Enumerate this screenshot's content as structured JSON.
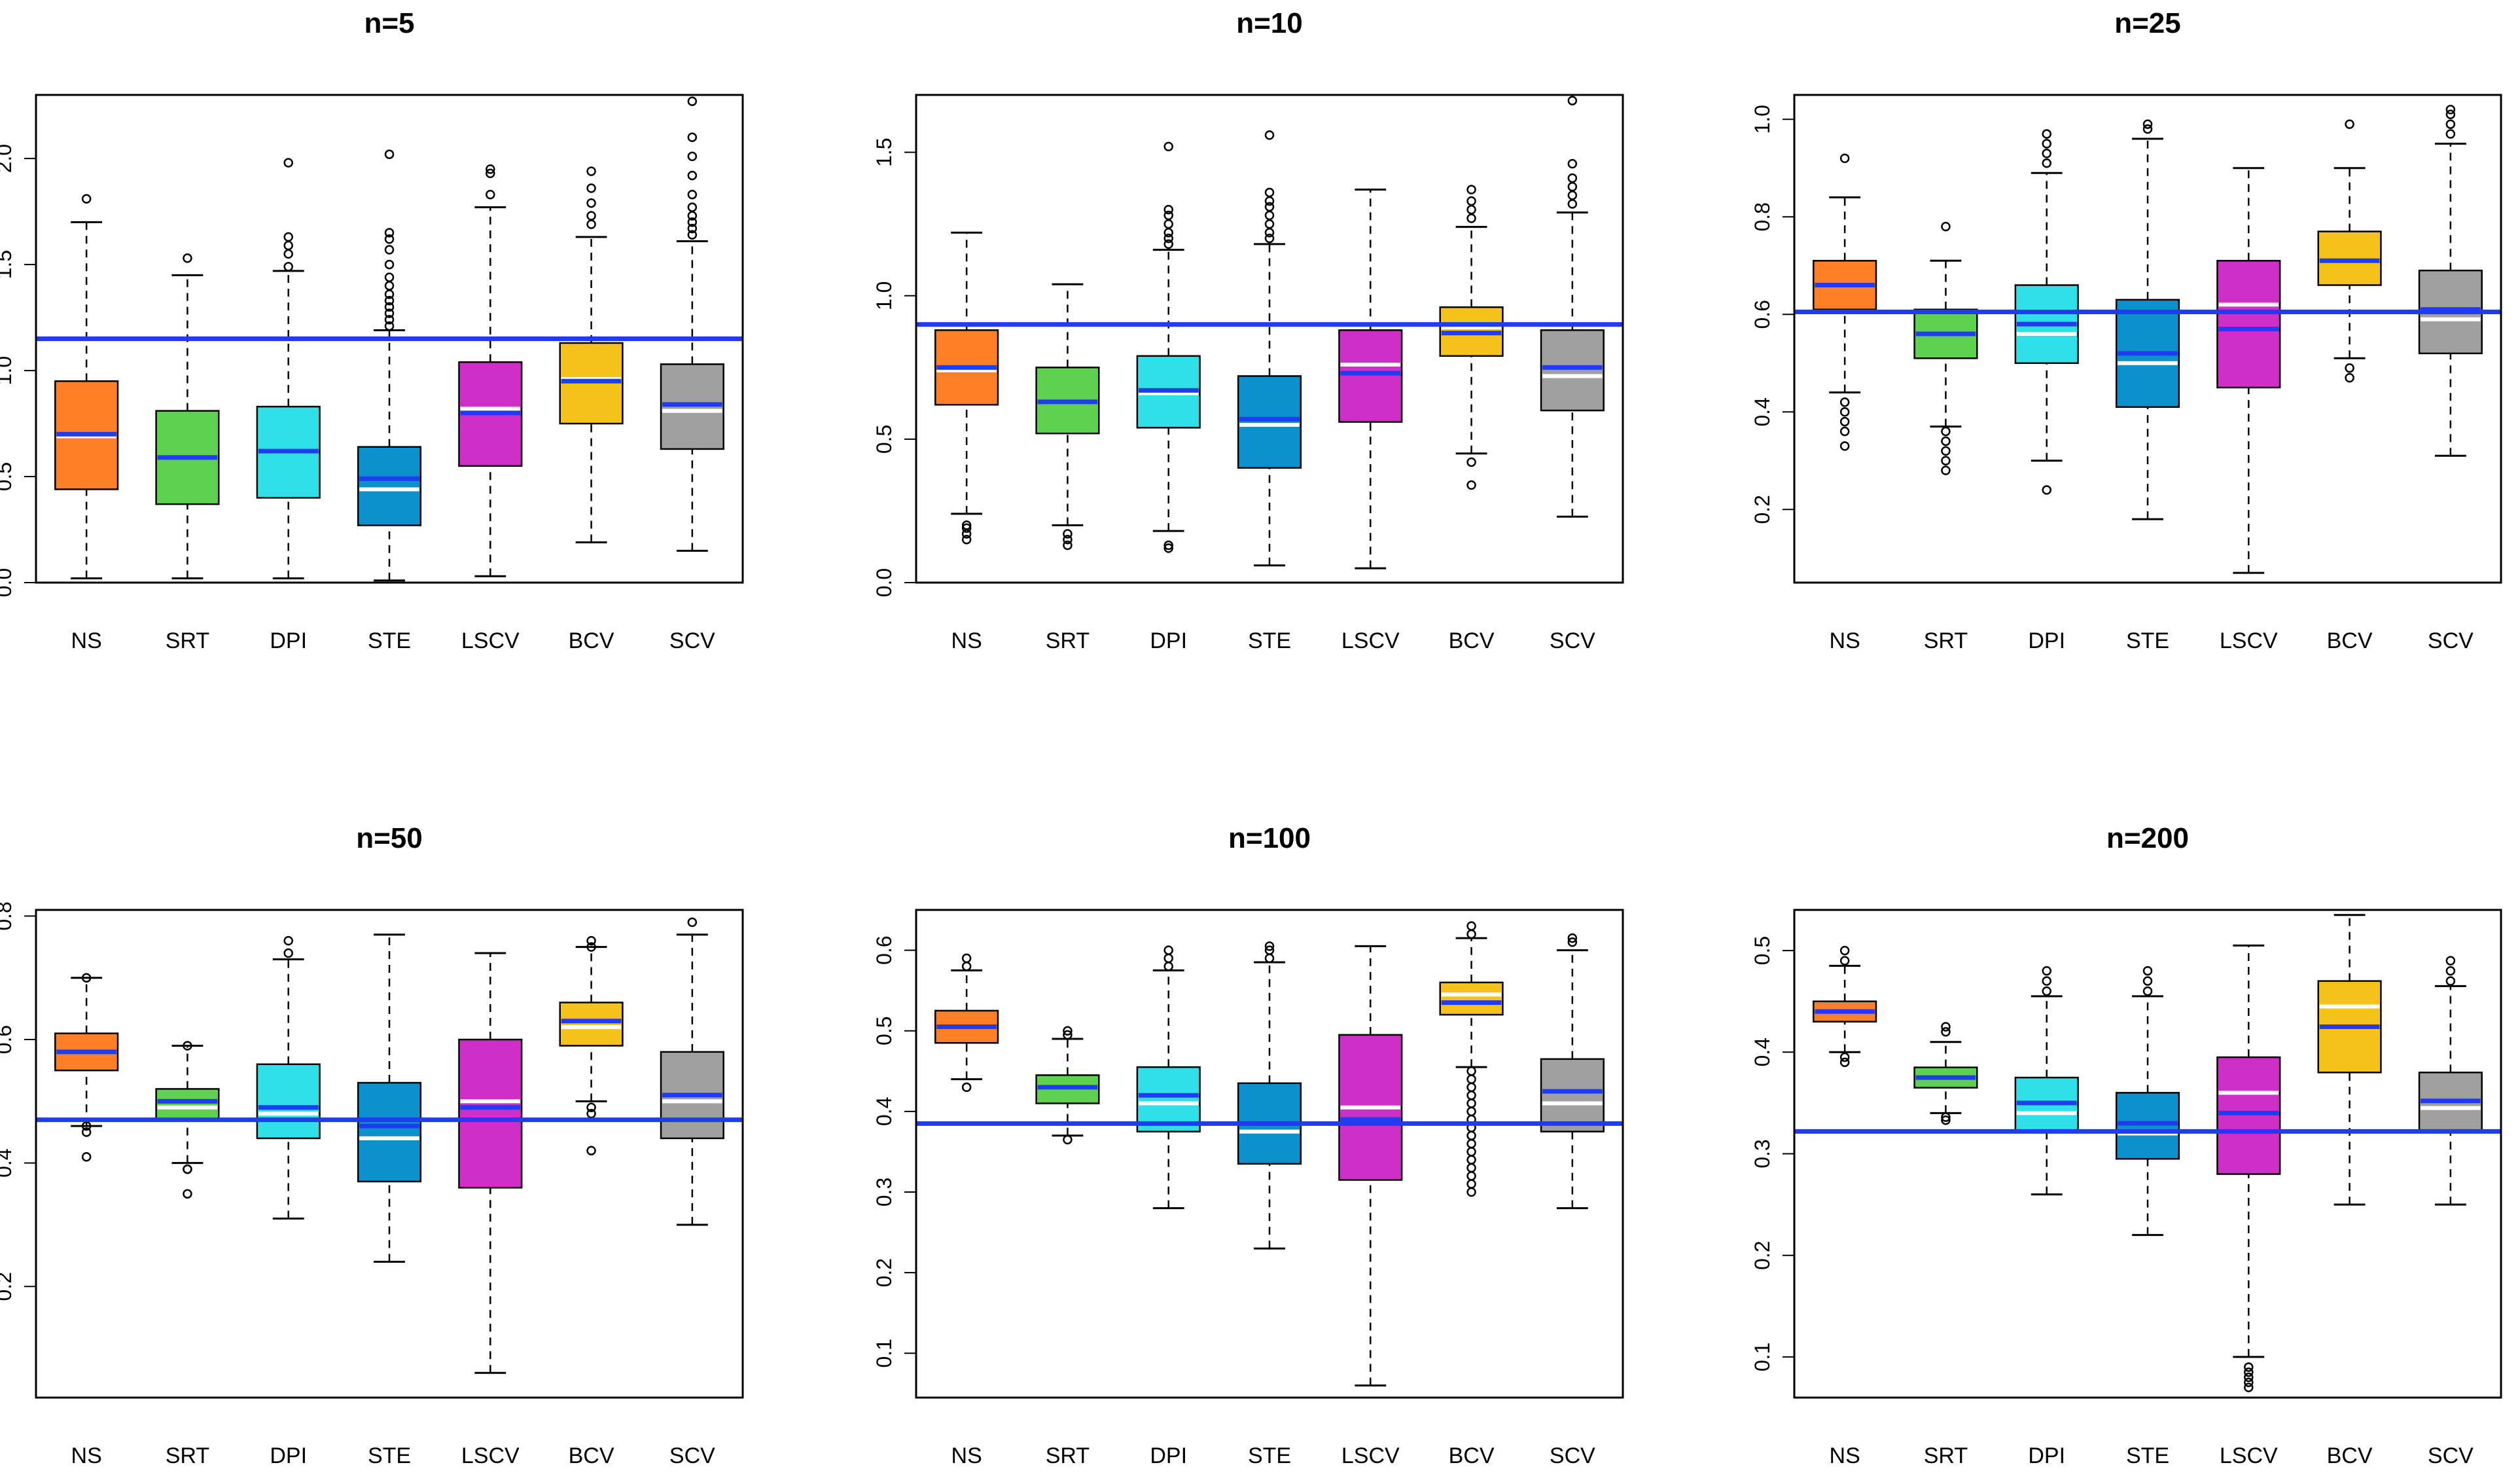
{
  "chart_data": [
    {
      "type": "boxplot",
      "title": "n=5",
      "ylim": [
        0,
        2.3
      ],
      "yticks": [
        "0.0",
        "0.5",
        "1.0",
        "1.5",
        "2.0"
      ],
      "ytick_values": [
        0,
        0.5,
        1.0,
        1.5,
        2.0
      ],
      "reference_line": 1.15,
      "categories": [
        "NS",
        "SRT",
        "DPI",
        "STE",
        "LSCV",
        "BCV",
        "SCV"
      ],
      "boxes": [
        {
          "wlo": 0.02,
          "q1": 0.44,
          "median": 0.69,
          "mean": 0.7,
          "q3": 0.95,
          "whi": 1.7,
          "outliers": [
            1.81
          ]
        },
        {
          "wlo": 0.02,
          "q1": 0.37,
          "median": 0.59,
          "mean": 0.59,
          "q3": 0.81,
          "whi": 1.45,
          "outliers": [
            1.53
          ]
        },
        {
          "wlo": 0.02,
          "q1": 0.4,
          "median": 0.62,
          "mean": 0.62,
          "q3": 0.83,
          "whi": 1.47,
          "outliers": [
            1.49,
            1.55,
            1.59,
            1.63,
            1.98
          ]
        },
        {
          "wlo": 0.01,
          "q1": 0.27,
          "median": 0.44,
          "mean": 0.49,
          "q3": 0.64,
          "whi": 1.19,
          "outliers": [
            1.21,
            1.24,
            1.27,
            1.3,
            1.33,
            1.36,
            1.4,
            1.44,
            1.5,
            1.57,
            1.62,
            1.65,
            2.02
          ]
        },
        {
          "wlo": 0.03,
          "q1": 0.55,
          "median": 0.82,
          "mean": 0.8,
          "q3": 1.04,
          "whi": 1.77,
          "outliers": [
            1.83,
            1.93,
            1.95
          ]
        },
        {
          "wlo": 0.19,
          "q1": 0.75,
          "median": 0.96,
          "mean": 0.95,
          "q3": 1.13,
          "whi": 1.63,
          "outliers": [
            1.69,
            1.73,
            1.79,
            1.86,
            1.94
          ]
        },
        {
          "wlo": 0.15,
          "q1": 0.63,
          "median": 0.81,
          "mean": 0.84,
          "q3": 1.03,
          "whi": 1.61,
          "outliers": [
            1.64,
            1.67,
            1.7,
            1.73,
            1.77,
            1.83,
            1.92,
            2.01,
            2.1,
            2.27
          ]
        }
      ]
    },
    {
      "type": "boxplot",
      "title": "n=10",
      "ylim": [
        0,
        1.7
      ],
      "yticks": [
        "0.0",
        "0.5",
        "1.0",
        "1.5"
      ],
      "ytick_values": [
        0,
        0.5,
        1.0,
        1.5
      ],
      "reference_line": 0.9,
      "categories": [
        "NS",
        "SRT",
        "DPI",
        "STE",
        "LSCV",
        "BCV",
        "SCV"
      ],
      "boxes": [
        {
          "wlo": 0.24,
          "q1": 0.62,
          "median": 0.74,
          "mean": 0.75,
          "q3": 0.88,
          "whi": 1.22,
          "outliers": [
            0.15,
            0.17,
            0.19,
            0.2
          ]
        },
        {
          "wlo": 0.2,
          "q1": 0.52,
          "median": 0.63,
          "mean": 0.63,
          "q3": 0.75,
          "whi": 1.04,
          "outliers": [
            0.13,
            0.15,
            0.17
          ]
        },
        {
          "wlo": 0.18,
          "q1": 0.54,
          "median": 0.66,
          "mean": 0.67,
          "q3": 0.79,
          "whi": 1.16,
          "outliers": [
            0.12,
            0.13,
            1.18,
            1.2,
            1.22,
            1.25,
            1.28,
            1.3,
            1.52
          ]
        },
        {
          "wlo": 0.06,
          "q1": 0.4,
          "median": 0.55,
          "mean": 0.57,
          "q3": 0.72,
          "whi": 1.18,
          "outliers": [
            1.2,
            1.22,
            1.25,
            1.28,
            1.31,
            1.33,
            1.36,
            1.56
          ]
        },
        {
          "wlo": 0.05,
          "q1": 0.56,
          "median": 0.76,
          "mean": 0.73,
          "q3": 0.88,
          "whi": 1.37,
          "outliers": []
        },
        {
          "wlo": 0.45,
          "q1": 0.79,
          "median": 0.89,
          "mean": 0.87,
          "q3": 0.96,
          "whi": 1.24,
          "outliers": [
            0.34,
            0.42,
            1.27,
            1.3,
            1.33,
            1.37
          ]
        },
        {
          "wlo": 0.23,
          "q1": 0.6,
          "median": 0.72,
          "mean": 0.75,
          "q3": 0.88,
          "whi": 1.29,
          "outliers": [
            1.32,
            1.35,
            1.38,
            1.41,
            1.46,
            1.68
          ]
        }
      ]
    },
    {
      "type": "boxplot",
      "title": "n=25",
      "ylim": [
        0.05,
        1.05
      ],
      "yticks": [
        "0.2",
        "0.4",
        "0.6",
        "0.8",
        "1.0"
      ],
      "ytick_values": [
        0.2,
        0.4,
        0.6,
        0.8,
        1.0
      ],
      "reference_line": 0.605,
      "categories": [
        "NS",
        "SRT",
        "DPI",
        "STE",
        "LSCV",
        "BCV",
        "SCV"
      ],
      "boxes": [
        {
          "wlo": 0.44,
          "q1": 0.61,
          "median": 0.66,
          "mean": 0.66,
          "q3": 0.71,
          "whi": 0.84,
          "outliers": [
            0.33,
            0.36,
            0.38,
            0.4,
            0.42,
            0.92
          ]
        },
        {
          "wlo": 0.37,
          "q1": 0.51,
          "median": 0.56,
          "mean": 0.56,
          "q3": 0.61,
          "whi": 0.71,
          "outliers": [
            0.28,
            0.3,
            0.32,
            0.34,
            0.36,
            0.78
          ]
        },
        {
          "wlo": 0.3,
          "q1": 0.5,
          "median": 0.56,
          "mean": 0.58,
          "q3": 0.66,
          "whi": 0.89,
          "outliers": [
            0.24,
            0.91,
            0.93,
            0.95,
            0.97
          ]
        },
        {
          "wlo": 0.18,
          "q1": 0.41,
          "median": 0.5,
          "mean": 0.52,
          "q3": 0.63,
          "whi": 0.96,
          "outliers": [
            0.98,
            0.99
          ]
        },
        {
          "wlo": 0.07,
          "q1": 0.45,
          "median": 0.62,
          "mean": 0.57,
          "q3": 0.71,
          "whi": 0.9,
          "outliers": []
        },
        {
          "wlo": 0.51,
          "q1": 0.66,
          "median": 0.71,
          "mean": 0.71,
          "q3": 0.77,
          "whi": 0.9,
          "outliers": [
            0.47,
            0.49,
            0.99
          ]
        },
        {
          "wlo": 0.31,
          "q1": 0.52,
          "median": 0.59,
          "mean": 0.61,
          "q3": 0.69,
          "whi": 0.95,
          "outliers": [
            0.97,
            0.99,
            1.01,
            1.02
          ]
        }
      ]
    },
    {
      "type": "boxplot",
      "title": "n=50",
      "ylim": [
        0.02,
        0.81
      ],
      "yticks": [
        "0.2",
        "0.4",
        "0.6",
        "0.8"
      ],
      "ytick_values": [
        0.2,
        0.4,
        0.6,
        0.8
      ],
      "reference_line": 0.47,
      "categories": [
        "NS",
        "SRT",
        "DPI",
        "STE",
        "LSCV",
        "BCV",
        "SCV"
      ],
      "boxes": [
        {
          "wlo": 0.46,
          "q1": 0.55,
          "median": 0.58,
          "mean": 0.58,
          "q3": 0.61,
          "whi": 0.7,
          "outliers": [
            0.41,
            0.45,
            0.46,
            0.7
          ]
        },
        {
          "wlo": 0.4,
          "q1": 0.47,
          "median": 0.49,
          "mean": 0.5,
          "q3": 0.52,
          "whi": 0.59,
          "outliers": [
            0.35,
            0.39,
            0.39,
            0.59
          ]
        },
        {
          "wlo": 0.31,
          "q1": 0.44,
          "median": 0.48,
          "mean": 0.49,
          "q3": 0.56,
          "whi": 0.73,
          "outliers": [
            0.74,
            0.76
          ]
        },
        {
          "wlo": 0.24,
          "q1": 0.37,
          "median": 0.44,
          "mean": 0.46,
          "q3": 0.53,
          "whi": 0.77,
          "outliers": []
        },
        {
          "wlo": 0.06,
          "q1": 0.36,
          "median": 0.5,
          "mean": 0.49,
          "q3": 0.6,
          "whi": 0.74,
          "outliers": []
        },
        {
          "wlo": 0.5,
          "q1": 0.59,
          "median": 0.62,
          "mean": 0.63,
          "q3": 0.66,
          "whi": 0.75,
          "outliers": [
            0.42,
            0.48,
            0.49,
            0.75,
            0.76
          ]
        },
        {
          "wlo": 0.3,
          "q1": 0.44,
          "median": 0.5,
          "mean": 0.51,
          "q3": 0.58,
          "whi": 0.77,
          "outliers": [
            0.79
          ]
        }
      ]
    },
    {
      "type": "boxplot",
      "title": "n=100",
      "ylim": [
        0.045,
        0.65
      ],
      "yticks": [
        "0.1",
        "0.2",
        "0.3",
        "0.4",
        "0.5",
        "0.6"
      ],
      "ytick_values": [
        0.1,
        0.2,
        0.3,
        0.4,
        0.5,
        0.6
      ],
      "reference_line": 0.385,
      "categories": [
        "NS",
        "SRT",
        "DPI",
        "STE",
        "LSCV",
        "BCV",
        "SCV"
      ],
      "boxes": [
        {
          "wlo": 0.44,
          "q1": 0.485,
          "median": 0.505,
          "mean": 0.505,
          "q3": 0.525,
          "whi": 0.575,
          "outliers": [
            0.43,
            0.58,
            0.59
          ]
        },
        {
          "wlo": 0.37,
          "q1": 0.41,
          "median": 0.43,
          "mean": 0.43,
          "q3": 0.445,
          "whi": 0.49,
          "outliers": [
            0.365,
            0.495,
            0.5
          ]
        },
        {
          "wlo": 0.28,
          "q1": 0.375,
          "median": 0.41,
          "mean": 0.42,
          "q3": 0.455,
          "whi": 0.575,
          "outliers": [
            0.58,
            0.59,
            0.6
          ]
        },
        {
          "wlo": 0.23,
          "q1": 0.335,
          "median": 0.375,
          "mean": 0.385,
          "q3": 0.435,
          "whi": 0.585,
          "outliers": [
            0.59,
            0.6,
            0.605
          ]
        },
        {
          "wlo": 0.06,
          "q1": 0.315,
          "median": 0.405,
          "mean": 0.39,
          "q3": 0.495,
          "whi": 0.605,
          "outliers": []
        },
        {
          "wlo": 0.455,
          "q1": 0.52,
          "median": 0.545,
          "mean": 0.535,
          "q3": 0.56,
          "whi": 0.615,
          "outliers": [
            0.3,
            0.31,
            0.32,
            0.33,
            0.34,
            0.35,
            0.36,
            0.37,
            0.38,
            0.39,
            0.4,
            0.41,
            0.42,
            0.43,
            0.44,
            0.45,
            0.62,
            0.63
          ]
        },
        {
          "wlo": 0.28,
          "q1": 0.375,
          "median": 0.41,
          "mean": 0.425,
          "q3": 0.465,
          "whi": 0.6,
          "outliers": [
            0.61,
            0.615
          ]
        }
      ]
    },
    {
      "type": "boxplot",
      "title": "n=200",
      "ylim": [
        0.06,
        0.54
      ],
      "yticks": [
        "0.1",
        "0.2",
        "0.3",
        "0.4",
        "0.5"
      ],
      "ytick_values": [
        0.1,
        0.2,
        0.3,
        0.4,
        0.5
      ],
      "reference_line": 0.322,
      "categories": [
        "NS",
        "SRT",
        "DPI",
        "STE",
        "LSCV",
        "BCV",
        "SCV"
      ],
      "boxes": [
        {
          "wlo": 0.4,
          "q1": 0.43,
          "median": 0.44,
          "mean": 0.44,
          "q3": 0.45,
          "whi": 0.485,
          "outliers": [
            0.39,
            0.395,
            0.49,
            0.5
          ]
        },
        {
          "wlo": 0.34,
          "q1": 0.365,
          "median": 0.375,
          "mean": 0.375,
          "q3": 0.385,
          "whi": 0.41,
          "outliers": [
            0.333,
            0.336,
            0.42,
            0.425
          ]
        },
        {
          "wlo": 0.26,
          "q1": 0.322,
          "median": 0.34,
          "mean": 0.35,
          "q3": 0.375,
          "whi": 0.455,
          "outliers": [
            0.46,
            0.47,
            0.48
          ]
        },
        {
          "wlo": 0.22,
          "q1": 0.295,
          "median": 0.32,
          "mean": 0.33,
          "q3": 0.36,
          "whi": 0.455,
          "outliers": [
            0.46,
            0.47,
            0.48
          ]
        },
        {
          "wlo": 0.1,
          "q1": 0.28,
          "median": 0.36,
          "mean": 0.34,
          "q3": 0.395,
          "whi": 0.505,
          "outliers": [
            0.07,
            0.075,
            0.08,
            0.085,
            0.09
          ]
        },
        {
          "wlo": 0.25,
          "q1": 0.38,
          "median": 0.445,
          "mean": 0.425,
          "q3": 0.47,
          "whi": 0.535,
          "outliers": []
        },
        {
          "wlo": 0.25,
          "q1": 0.322,
          "median": 0.345,
          "mean": 0.352,
          "q3": 0.38,
          "whi": 0.465,
          "outliers": [
            0.47,
            0.48,
            0.49
          ]
        }
      ]
    }
  ],
  "box_colors": [
    "#ff7f27",
    "#5ed14e",
    "#2ee0e8",
    "#0b92cc",
    "#cf2fc7",
    "#f5c21b",
    "#a0a0a0"
  ],
  "reference_line_color": "#1f3cf0",
  "mean_line_color": "#1f3cf0",
  "median_line_color": "#ffffff"
}
